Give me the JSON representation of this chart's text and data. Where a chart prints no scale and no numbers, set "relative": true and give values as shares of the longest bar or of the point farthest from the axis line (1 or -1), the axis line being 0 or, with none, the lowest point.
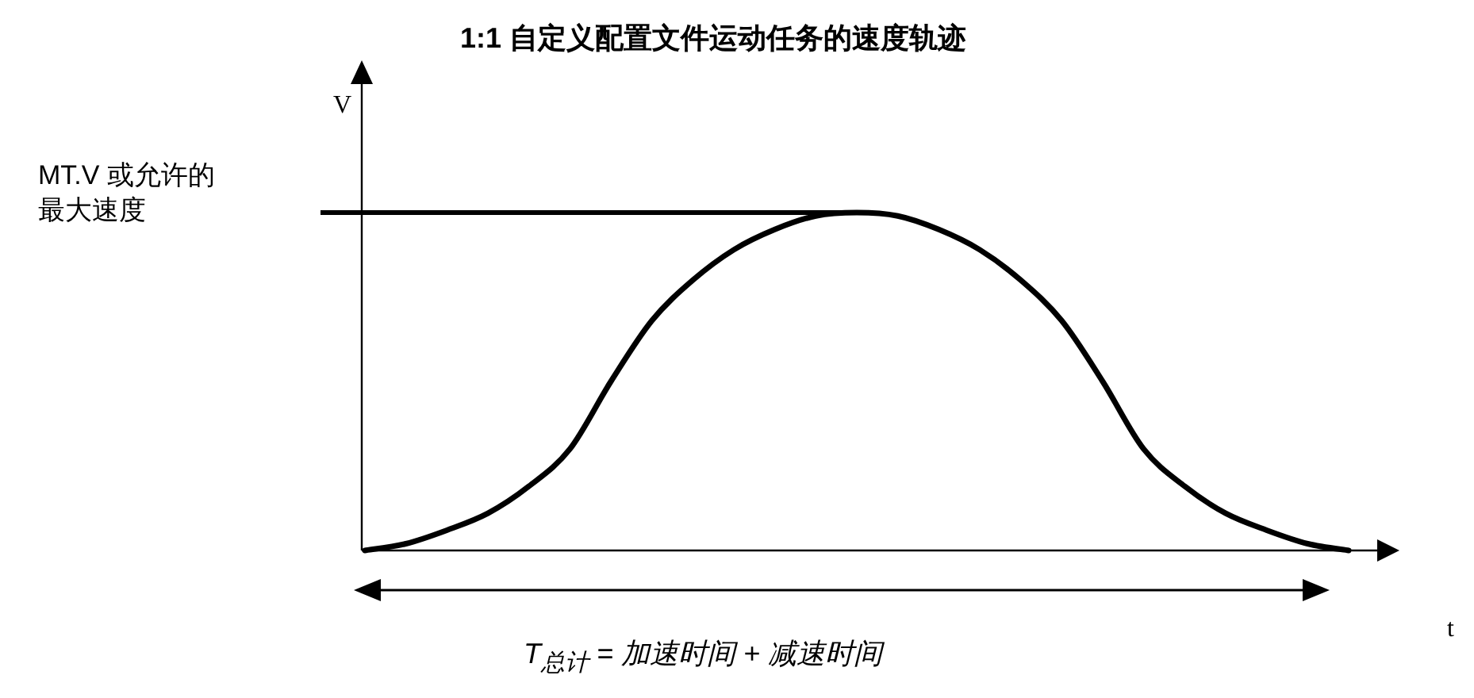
{
  "chart_data": {
    "type": "line",
    "title": "1:1 自定义配置文件运动任务的速度轨迹",
    "xlabel": "t",
    "ylabel": "V",
    "relative": true,
    "categories": [
      null,
      null,
      null,
      null,
      null,
      null,
      null,
      null,
      null,
      null,
      null,
      null,
      null,
      null,
      null,
      null,
      null,
      null,
      null,
      null,
      null,
      null,
      null,
      null,
      null
    ],
    "series": [
      {
        "color": "#000000",
        "values": [
          0,
          0.02,
          0.06,
          0.11,
          0.19,
          0.3,
          0.5,
          0.68,
          0.8,
          0.89,
          0.95,
          0.99,
          1.0,
          0.99,
          0.95,
          0.89,
          0.8,
          0.68,
          0.5,
          0.3,
          0.19,
          0.11,
          0.06,
          0.02,
          0
        ]
      }
    ],
    "ref_lines": [
      {
        "axis": "y",
        "value": 1,
        "label": "MT.V 或允许的最大速度",
        "color": "#000000"
      }
    ],
    "annotations": [
      "T$_{总计}$ = 加速时间 + 减速时间"
    ]
  }
}
